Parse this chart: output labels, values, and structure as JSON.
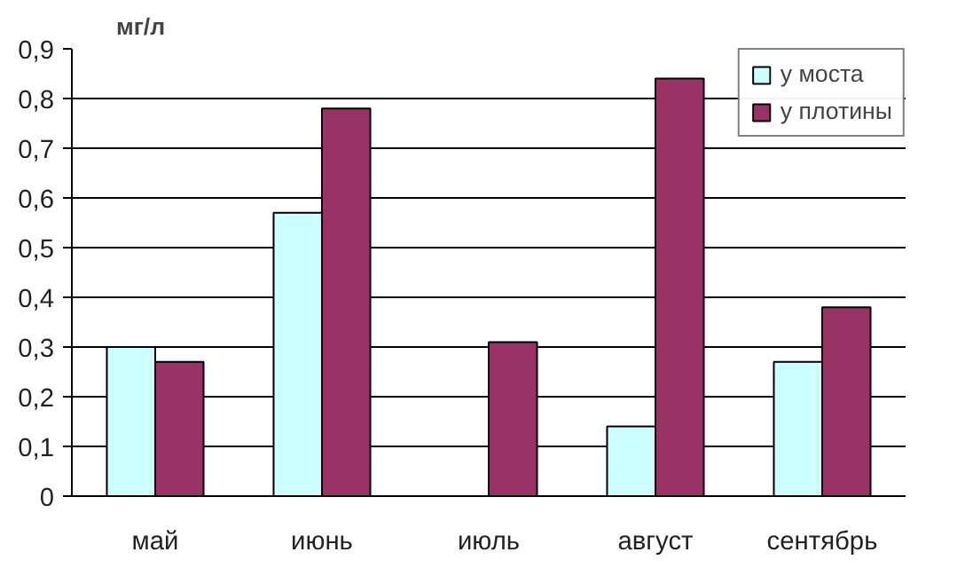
{
  "chart_data": {
    "type": "bar",
    "ylabel": "мг/л",
    "categories": [
      "май",
      "июнь",
      "июль",
      "август",
      "сентябрь"
    ],
    "series": [
      {
        "name": "у моста",
        "color": "#ccffff",
        "values": [
          0.3,
          0.57,
          null,
          0.14,
          0.27
        ]
      },
      {
        "name": "у плотины",
        "color": "#993366",
        "values": [
          0.27,
          0.78,
          0.31,
          0.84,
          0.38
        ]
      }
    ],
    "ylim": [
      0,
      0.9
    ],
    "yticks": [
      0,
      {
        "value": 0.1,
        "label": "0,1"
      },
      {
        "value": 0.2,
        "label": "0,2"
      },
      {
        "value": 0.3,
        "label": "0,3"
      },
      {
        "value": 0.4,
        "label": "0,4"
      },
      {
        "value": 0.5,
        "label": "0,5"
      },
      {
        "value": 0.6,
        "label": "0,6"
      },
      {
        "value": 0.7,
        "label": "0,7"
      },
      {
        "value": 0.8,
        "label": "0,8"
      },
      {
        "value": 0.9,
        "label": "0,9"
      }
    ],
    "grid": "y",
    "legend": "top right"
  }
}
